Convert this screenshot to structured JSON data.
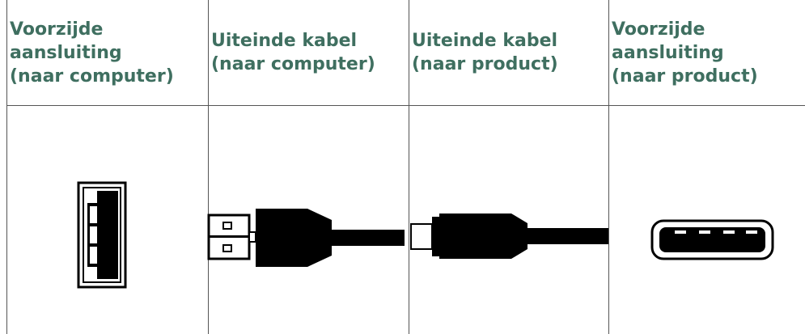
{
  "table": {
    "headers": [
      [
        "Voorzijde",
        "aansluiting",
        "(naar computer)"
      ],
      [
        "Uiteinde kabel",
        "(naar computer)"
      ],
      [
        "Uiteinde kabel",
        "(naar product)"
      ],
      [
        "Voorzijde",
        "aansluiting",
        "(naar product)"
      ]
    ]
  }
}
